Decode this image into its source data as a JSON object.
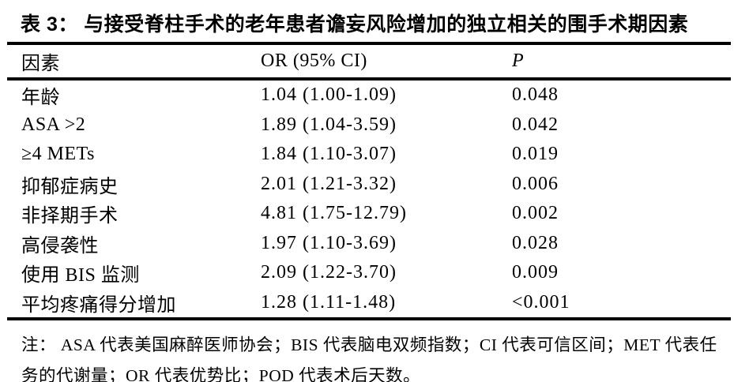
{
  "title": "表 3： 与接受脊柱手术的老年患者谵妄风险增加的独立相关的围手术期因素",
  "table": {
    "columns": [
      "因素",
      "OR (95% CI)",
      "P"
    ],
    "rows": [
      {
        "factor": "年龄",
        "or_ci": "1.04 (1.00-1.09)",
        "p": "0.048"
      },
      {
        "factor": "ASA >2",
        "or_ci": "1.89 (1.04-3.59)",
        "p": "0.042"
      },
      {
        "factor": "≥4 METs",
        "or_ci": "1.84 (1.10-3.07)",
        "p": "0.019"
      },
      {
        "factor": "抑郁症病史",
        "or_ci": "2.01 (1.21-3.32)",
        "p": "0.006"
      },
      {
        "factor": "非择期手术",
        "or_ci": "4.81 (1.75-12.79)",
        "p": "0.002"
      },
      {
        "factor": "高侵袭性",
        "or_ci": "1.97 (1.10-3.69)",
        "p": "0.028"
      },
      {
        "factor": "使用 BIS 监测",
        "or_ci": "2.09 (1.22-3.70)",
        "p": "0.009"
      },
      {
        "factor": "平均疼痛得分增加",
        "or_ci": "1.28 (1.11-1.48)",
        "p": "<0.001"
      }
    ]
  },
  "note": "注： ASA 代表美国麻醉医师协会；BIS 代表脑电双频指数；CI 代表可信区间；MET 代表任务的代谢量；OR 代表优势比；POD 代表术后天数。",
  "colors": {
    "text": "#000000",
    "background": "#ffffff",
    "rule": "#000000"
  }
}
